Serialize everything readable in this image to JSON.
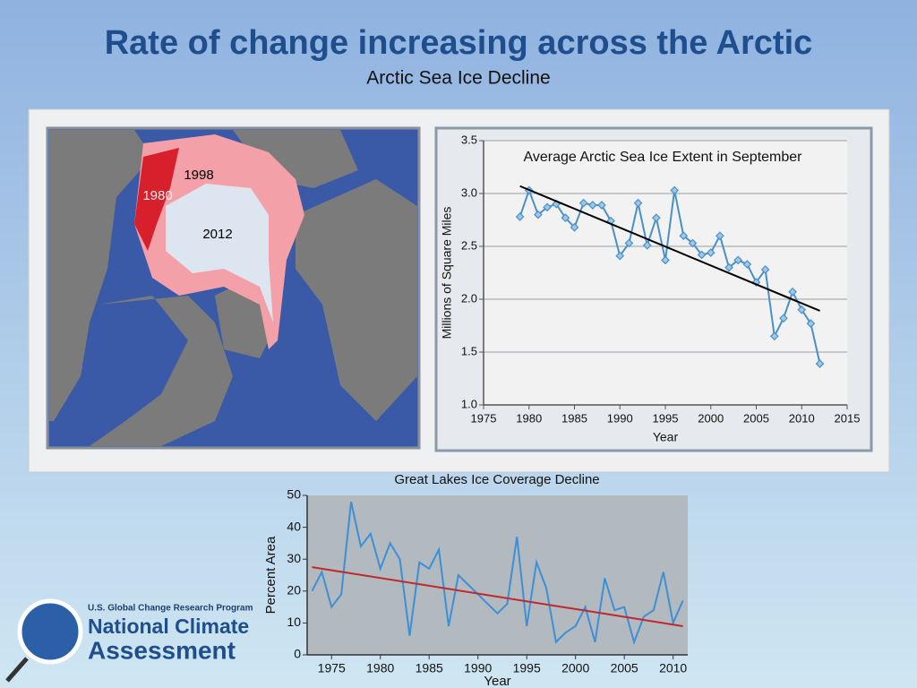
{
  "slide": {
    "title": "Rate of change increasing across the Arctic",
    "subtitle": "Arctic Sea Ice Decline"
  },
  "map": {
    "labels": [
      "1998",
      "1980",
      "2012"
    ]
  },
  "logo": {
    "program": "U.S. Global Change Research Program",
    "line1": "National Climate",
    "line2": "Assessment"
  },
  "chart_data": [
    {
      "type": "line",
      "title": "Average Arctic Sea Ice Extent in September",
      "x_label": "Year",
      "y_label": "Millions of Square Miles",
      "x": [
        1979,
        1980,
        1981,
        1982,
        1983,
        1984,
        1985,
        1986,
        1987,
        1988,
        1989,
        1990,
        1991,
        1992,
        1993,
        1994,
        1995,
        1996,
        1997,
        1998,
        1999,
        2000,
        2001,
        2002,
        2003,
        2004,
        2005,
        2006,
        2007,
        2008,
        2009,
        2010,
        2011,
        2012
      ],
      "series": [
        {
          "color": "#4a90c8",
          "marker": "diamond",
          "values": [
            2.78,
            3.03,
            2.8,
            2.87,
            2.9,
            2.77,
            2.68,
            2.91,
            2.89,
            2.89,
            2.74,
            2.41,
            2.53,
            2.91,
            2.51,
            2.77,
            2.37,
            3.03,
            2.6,
            2.53,
            2.42,
            2.44,
            2.6,
            2.3,
            2.37,
            2.33,
            2.16,
            2.28,
            1.65,
            1.82,
            2.07,
            1.9,
            1.77,
            1.39
          ]
        }
      ],
      "trend": {
        "x": [
          1979,
          2012
        ],
        "values": [
          3.07,
          1.89
        ],
        "color": "#000000"
      },
      "xlim": [
        1975,
        2015
      ],
      "xticks": [
        1975,
        1980,
        1985,
        1990,
        1995,
        2000,
        2005,
        2010,
        2015
      ],
      "ylim": [
        1,
        3.5
      ],
      "yticks": [
        {
          "value": 1,
          "label": "1.0"
        },
        1.5,
        {
          "value": 2,
          "label": "2.0"
        },
        2.5,
        {
          "value": 3,
          "label": "3.0"
        },
        3.5
      ],
      "grid": true,
      "background": "#f2f2f2"
    },
    {
      "type": "line",
      "title": "Great Lakes Ice Coverage Decline",
      "x_label": "Year",
      "y_label": "Percent Area",
      "x": [
        1973,
        1974,
        1975,
        1976,
        1977,
        1978,
        1979,
        1980,
        1981,
        1982,
        1983,
        1984,
        1985,
        1986,
        1987,
        1988,
        1989,
        1990,
        1991,
        1992,
        1993,
        1994,
        1995,
        1996,
        1997,
        1998,
        1999,
        2000,
        2001,
        2002,
        2003,
        2004,
        2005,
        2006,
        2007,
        2008,
        2009,
        2010,
        2011
      ],
      "series": [
        {
          "color": "#3d8fd6",
          "values": [
            20,
            26,
            15,
            19,
            48,
            34,
            38,
            27,
            35,
            30,
            6,
            29,
            27,
            33,
            9,
            25,
            22,
            19,
            16,
            13,
            16,
            37,
            9,
            29,
            21,
            4,
            7,
            9,
            15,
            4,
            24,
            14,
            15,
            4,
            12,
            14,
            26,
            10,
            17
          ]
        }
      ],
      "trend": {
        "x": [
          1973,
          2011
        ],
        "values": [
          27.5,
          9
        ],
        "color": "#c0282d"
      },
      "xlim": [
        1972.5,
        2011.5
      ],
      "xticks": [
        1975,
        1980,
        1985,
        1990,
        1995,
        2000,
        2005,
        2010
      ],
      "ylim": [
        0,
        50
      ],
      "yticks": [
        0,
        10,
        20,
        30,
        40,
        50
      ],
      "grid": false,
      "background": "#b2b9bf"
    }
  ]
}
